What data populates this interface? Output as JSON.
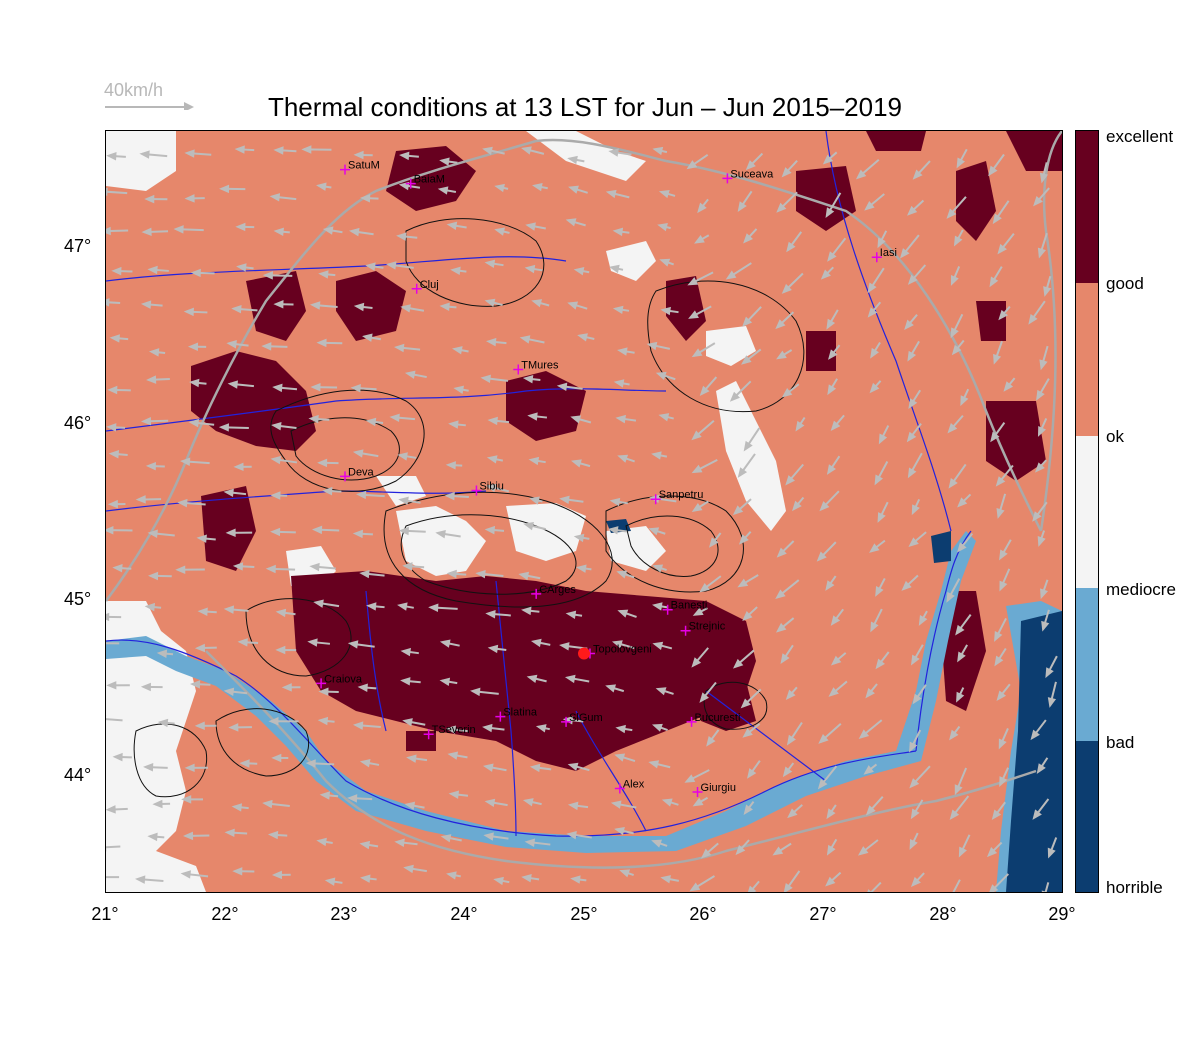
{
  "title": "Thermal conditions at 13 LST for Jun – Jun  2015–2019",
  "wind_reference": {
    "label": "40km/h",
    "value_kmh": 40
  },
  "latitude_labels": [
    "47°",
    "46°",
    "45°",
    "44°"
  ],
  "longitude_labels": [
    "21°",
    "22°",
    "23°",
    "24°",
    "25°",
    "26°",
    "27°",
    "28°",
    "29°"
  ],
  "extent": {
    "lon_min": 21,
    "lon_max": 29,
    "lat_min": 43.33,
    "lat_max": 47.67
  },
  "colorbar": {
    "labels": [
      "excellent",
      "good",
      "ok",
      "mediocre",
      "bad",
      "horrible"
    ],
    "colors": {
      "excellent": "#67001f",
      "good": "#e6876b",
      "ok": "#f4f4f4",
      "bad": "#6aaad2",
      "horrible": "#0c3d70"
    }
  },
  "cities": [
    {
      "name": "SatuM",
      "lon": 23.0,
      "lat": 47.45
    },
    {
      "name": "BaiaM",
      "lon": 23.55,
      "lat": 47.37
    },
    {
      "name": "Suceava",
      "lon": 26.2,
      "lat": 47.4
    },
    {
      "name": "Iasi",
      "lon": 27.45,
      "lat": 46.95
    },
    {
      "name": "Cluj",
      "lon": 23.6,
      "lat": 46.77
    },
    {
      "name": "TMures",
      "lon": 24.45,
      "lat": 46.31
    },
    {
      "name": "Deva",
      "lon": 23.0,
      "lat": 45.7
    },
    {
      "name": "Sibiu",
      "lon": 24.1,
      "lat": 45.62
    },
    {
      "name": "Sanpetru",
      "lon": 25.6,
      "lat": 45.57
    },
    {
      "name": "CArges",
      "lon": 24.6,
      "lat": 45.03
    },
    {
      "name": "Banesti",
      "lon": 25.7,
      "lat": 44.94
    },
    {
      "name": "Strejnic",
      "lon": 25.85,
      "lat": 44.82
    },
    {
      "name": "Topolovgeni",
      "lon": 25.05,
      "lat": 44.69
    },
    {
      "name": "Craiova",
      "lon": 22.8,
      "lat": 44.52
    },
    {
      "name": "Slatina",
      "lon": 24.3,
      "lat": 44.33
    },
    {
      "name": "SlGum",
      "lon": 24.85,
      "lat": 44.3
    },
    {
      "name": "Bucuresti",
      "lon": 25.9,
      "lat": 44.3
    },
    {
      "name": "TSeverin",
      "lon": 23.7,
      "lat": 44.23
    },
    {
      "name": "Alex",
      "lon": 25.3,
      "lat": 43.92
    },
    {
      "name": "Giurgiu",
      "lon": 25.95,
      "lat": 43.9
    }
  ],
  "highlight_site": {
    "name": "Topolovgeni",
    "lon": 25.0,
    "lat": 44.69,
    "color": "#ff1a1a"
  }
}
